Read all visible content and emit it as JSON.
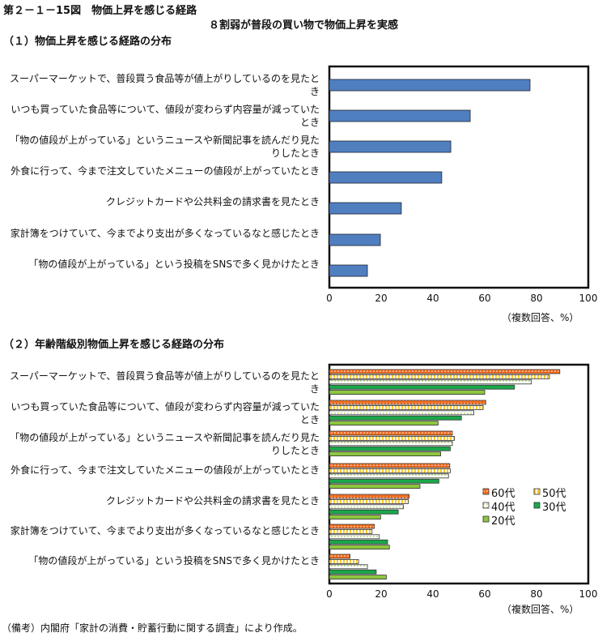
{
  "header": {
    "figure_title": "第２－１－15図　物価上昇を感じる経路",
    "subtitle": "８割弱が普段の買い物で物価上昇を実感"
  },
  "footer": {
    "note": "（備考）内閣府「家計の消費・貯蓄行動に関する調査」により作成。"
  },
  "colors": {
    "bar": "#4f7fbf",
    "s60": "#f26b1d",
    "s50": "#ffd24a",
    "s40": "#e8f3c8",
    "s30": "#1aa84a",
    "s20": "#8dc63f"
  },
  "chart_data": [
    {
      "type": "bar",
      "title": "（１）物価上昇を感じる経路の分布",
      "xlabel": "（複数回答、%）",
      "xlim": [
        0,
        100
      ],
      "ticks": [
        "0",
        "20",
        "40",
        "60",
        "80",
        "100"
      ],
      "categories": [
        "スーパーマーケットで、普段買う食品等が値上がりしているのを見たとき",
        "いつも買っていた食品等について、値段が変わらず内容量が減っていたとき",
        "「物の値段が上がっている」というニュースや新聞記事を読んだり見たりしたとき",
        "外食に行って、今まで注文していたメニューの値段が上がっていたとき",
        "クレジットカードや公共料金の請求書を見たとき",
        "家計簿をつけていて、今までより支出が多くなっているなと感じたとき",
        "「物の値段が上がっている」という投稿をSNSで多く見かけたとき"
      ],
      "values": [
        77.5,
        54.4,
        46.9,
        43.4,
        27.8,
        19.7,
        14.7
      ]
    },
    {
      "type": "bar",
      "title": "（２）年齢階級別物価上昇を感じる経路の分布",
      "xlabel": "（複数回答、%）",
      "xlim": [
        0,
        100
      ],
      "ticks": [
        "0",
        "20",
        "40",
        "60",
        "80",
        "100"
      ],
      "legend": "right",
      "categories": [
        "スーパーマーケットで、普段買う食品等が値上がりしているのを見たとき",
        "いつも買っていた食品等について、値段が変わらず内容量が減っていたとき",
        "「物の値段が上がっている」というニュースや新聞記事を読んだり見たりしたとき",
        "外食に行って、今まで注文していたメニューの値段が上がっていたとき",
        "クレジットカードや公共料金の請求書を見たとき",
        "家計簿をつけていて、今までより支出が多くなっているなと感じたとき",
        "「物の値段が上がっている」という投稿をSNSで多く見かけたとき"
      ],
      "series": [
        {
          "name": "60代",
          "values": [
            89,
            60.4,
            47.5,
            46.5,
            30.8,
            17.4,
            8
          ]
        },
        {
          "name": "50代",
          "values": [
            85,
            59.4,
            48.3,
            46.7,
            30.5,
            16.5,
            11.3
          ]
        },
        {
          "name": "40代",
          "values": [
            78,
            55.8,
            47.5,
            46,
            28.6,
            19.3,
            14.7
          ]
        },
        {
          "name": "30代",
          "values": [
            71.5,
            51,
            46.7,
            42.3,
            26.6,
            22.5,
            18.1
          ]
        },
        {
          "name": "20代",
          "values": [
            60,
            42,
            43,
            35,
            19.8,
            23.2,
            22
          ]
        }
      ]
    }
  ]
}
